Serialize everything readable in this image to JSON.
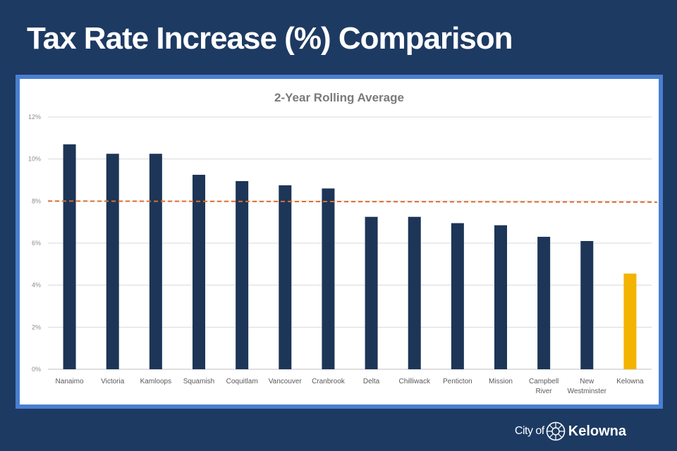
{
  "slide": {
    "title": "Tax Rate Increase (%) Comparison"
  },
  "footer": {
    "city_of": "City of",
    "city_name": "Kelowna"
  },
  "colors": {
    "background": "#1d3a63",
    "bar": "#1d3557",
    "highlight_bar": "#f2b400",
    "reference_line": "#e06c2a"
  },
  "chart_data": {
    "type": "bar",
    "title": "2-Year Rolling Average",
    "categories": [
      "Nanaimo",
      "Victoria",
      "Kamloops",
      "Squamish",
      "Coquitlam",
      "Vancouver",
      "Cranbrook",
      "Delta",
      "Chilliwack",
      "Penticton",
      "Mission",
      "Campbell River",
      "New Westminster",
      "Kelowna"
    ],
    "category_lines": [
      [
        "Nanaimo"
      ],
      [
        "Victoria"
      ],
      [
        "Kamloops"
      ],
      [
        "Squamish"
      ],
      [
        "Coquitlam"
      ],
      [
        "Vancouver"
      ],
      [
        "Cranbrook"
      ],
      [
        "Delta"
      ],
      [
        "Chilliwack"
      ],
      [
        "Penticton"
      ],
      [
        "Mission"
      ],
      [
        "Campbell",
        "River"
      ],
      [
        "New",
        "Westminster"
      ],
      [
        "Kelowna"
      ]
    ],
    "values": [
      10.7,
      10.25,
      10.25,
      9.25,
      8.95,
      8.75,
      8.6,
      7.25,
      7.25,
      6.95,
      6.85,
      6.3,
      6.1,
      4.55
    ],
    "highlight_category": "Kelowna",
    "reference_line": {
      "value": 8.0,
      "style": "dashed"
    },
    "ylim": [
      0,
      12
    ],
    "y_ticks": [
      0,
      2,
      4,
      6,
      8,
      10,
      12
    ],
    "y_tick_labels": [
      "0%",
      "2%",
      "4%",
      "6%",
      "8%",
      "10%",
      "12%"
    ],
    "grid": true,
    "xlabel": "",
    "ylabel": ""
  }
}
